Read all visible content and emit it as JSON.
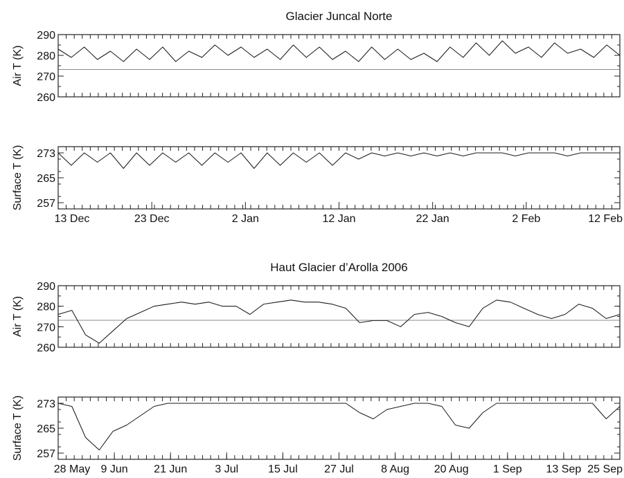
{
  "chart_data": [
    {
      "type": "line",
      "title": "Glacier Juncal Norte",
      "ylabel": "Air T (K)",
      "ylim": [
        260,
        290
      ],
      "yticks": [
        290,
        280,
        270,
        260
      ],
      "reference_line": 273.15,
      "x_tick_labels": [],
      "series": [
        {
          "x": [
            0,
            1.5,
            3,
            4.5,
            6,
            7.5,
            9,
            10.5,
            12,
            13.5,
            15,
            16.5,
            18,
            19.5,
            21,
            22.5,
            24,
            25.5,
            27,
            28.5,
            30,
            31.5,
            33,
            34.5,
            36,
            37.5,
            39,
            40.5,
            42,
            43.5,
            45,
            46.5,
            48,
            49.5,
            51,
            52.5,
            54,
            55.5,
            57,
            58.5,
            60,
            61.5,
            63,
            64.5
          ],
          "values": [
            283,
            279,
            284,
            278,
            282,
            277,
            283,
            278,
            284,
            277,
            282,
            279,
            285,
            280,
            284,
            279,
            283,
            278,
            285,
            279,
            284,
            278,
            282,
            277,
            284,
            278,
            283,
            278,
            281,
            277,
            284,
            279,
            286,
            280,
            287,
            281,
            284,
            279,
            286,
            281,
            283,
            279,
            285,
            280
          ]
        }
      ]
    },
    {
      "type": "line",
      "title": "",
      "ylabel": "Surface T (K)",
      "ylim": [
        255,
        275
      ],
      "yticks": [
        273,
        265,
        257
      ],
      "x_tick_labels": [
        "13 Dec",
        "23 Dec",
        "2 Jan",
        "12 Jan",
        "22 Jan",
        "2 Feb",
        "12 Feb"
      ],
      "series": [
        {
          "x": [
            0,
            1.5,
            3,
            4.5,
            6,
            7.5,
            9,
            10.5,
            12,
            13.5,
            15,
            16.5,
            18,
            19.5,
            21,
            22.5,
            24,
            25.5,
            27,
            28.5,
            30,
            31.5,
            33,
            34.5,
            36,
            37.5,
            39,
            40.5,
            42,
            43.5,
            45,
            46.5,
            48,
            49.5,
            51,
            52.5,
            54,
            55.5,
            57,
            58.5,
            60,
            61.5,
            63,
            64.5
          ],
          "values": [
            273,
            269,
            273,
            270,
            273,
            268,
            273,
            269,
            273,
            270,
            273,
            269,
            273,
            270,
            273,
            268,
            273,
            269,
            273,
            270,
            273,
            269,
            273,
            271,
            273,
            272,
            273,
            272,
            273,
            272,
            273,
            272,
            273,
            273,
            273,
            272,
            273,
            273,
            273,
            272,
            273,
            273,
            273,
            273
          ]
        }
      ]
    },
    {
      "type": "line",
      "title": "Haut Glacier d’Arolla 2006",
      "ylabel": "Air T (K)",
      "ylim": [
        260,
        290
      ],
      "yticks": [
        290,
        280,
        270,
        260
      ],
      "reference_line": 273.15,
      "x_tick_labels": [],
      "series": [
        {
          "x": [
            0,
            3,
            6,
            9,
            12,
            15,
            18,
            21,
            24,
            27,
            30,
            33,
            36,
            39,
            42,
            45,
            48,
            51,
            54,
            57,
            60,
            63,
            66,
            69,
            72,
            75,
            78,
            81,
            84,
            87,
            90,
            93,
            96,
            99,
            102,
            105,
            108,
            111,
            114,
            117,
            120,
            123
          ],
          "values": [
            276,
            278,
            266,
            262,
            268,
            274,
            277,
            280,
            281,
            282,
            281,
            282,
            280,
            280,
            276,
            281,
            282,
            283,
            282,
            282,
            281,
            279,
            272,
            273,
            273,
            270,
            276,
            277,
            275,
            272,
            270,
            279,
            283,
            282,
            279,
            276,
            274,
            276,
            281,
            279,
            274,
            276
          ]
        }
      ]
    },
    {
      "type": "line",
      "title": "",
      "ylabel": "Surface T (K)",
      "ylim": [
        255,
        275
      ],
      "yticks": [
        273,
        265,
        257
      ],
      "x_tick_labels": [
        "28 May",
        "9 Jun",
        "21 Jun",
        "3 Jul",
        "15 Jul",
        "27 Jul",
        "8 Aug",
        "20 Aug",
        "1 Sep",
        "13 Sep",
        "25 Sep"
      ],
      "series": [
        {
          "x": [
            0,
            3,
            6,
            9,
            12,
            15,
            18,
            21,
            24,
            27,
            30,
            33,
            36,
            39,
            42,
            45,
            48,
            51,
            54,
            57,
            60,
            63,
            66,
            69,
            72,
            75,
            78,
            81,
            84,
            87,
            90,
            93,
            96,
            99,
            102,
            105,
            108,
            111,
            114,
            117,
            120,
            123
          ],
          "values": [
            273,
            272,
            262,
            258,
            264,
            266,
            269,
            272,
            273,
            273,
            273,
            273,
            273,
            273,
            273,
            273,
            273,
            273,
            273,
            273,
            273,
            273,
            270,
            268,
            271,
            272,
            273,
            273,
            272,
            266,
            265,
            270,
            273,
            273,
            273,
            273,
            273,
            273,
            273,
            273,
            268,
            272
          ]
        }
      ]
    }
  ]
}
